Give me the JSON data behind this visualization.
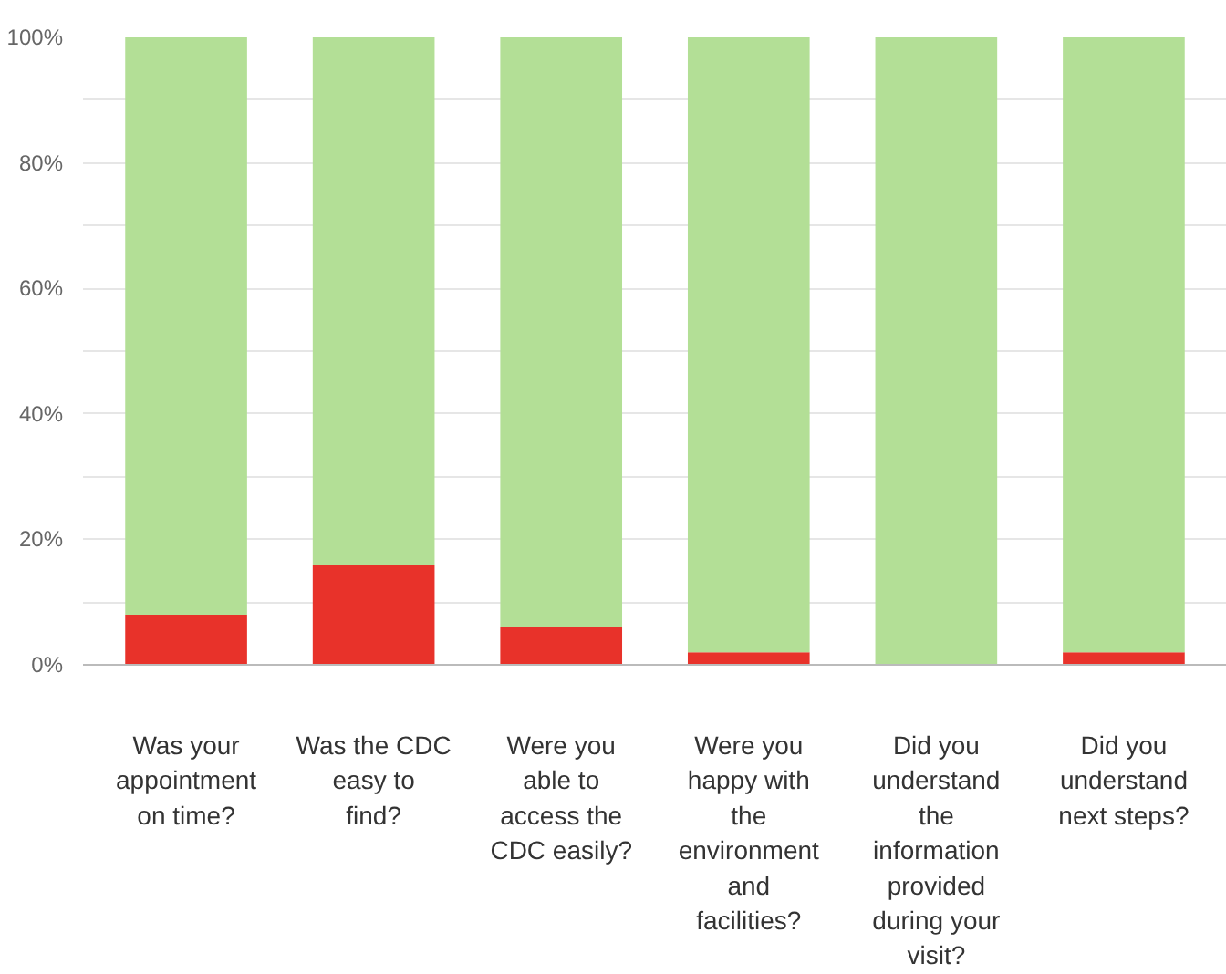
{
  "chart_data": {
    "type": "bar",
    "stacked": true,
    "categories": [
      "Was your appointment on time?",
      "Was the CDC easy to find?",
      "Were you able to access the CDC easily?",
      "Were you happy with the environment and facilities?",
      "Did you understand the information provided during your visit?",
      "Did you understand next steps?"
    ],
    "series": [
      {
        "color": "#e8322a",
        "values": [
          8,
          16,
          6,
          2,
          0,
          2
        ]
      },
      {
        "color": "#b3df96",
        "values": [
          92,
          84,
          94,
          98,
          100,
          98
        ]
      }
    ],
    "ylim": [
      0,
      100
    ],
    "yticks": [
      {
        "value": 0,
        "label": "0%"
      },
      {
        "value": 10,
        "label": null
      },
      {
        "value": 20,
        "label": "20%"
      },
      {
        "value": 30,
        "label": null
      },
      {
        "value": 40,
        "label": "40%"
      },
      {
        "value": 50,
        "label": null
      },
      {
        "value": 60,
        "label": "60%"
      },
      {
        "value": 70,
        "label": null
      },
      {
        "value": 80,
        "label": "80%"
      },
      {
        "value": 90,
        "label": null
      },
      {
        "value": 100,
        "label": "100%"
      }
    ],
    "grid": "y"
  }
}
